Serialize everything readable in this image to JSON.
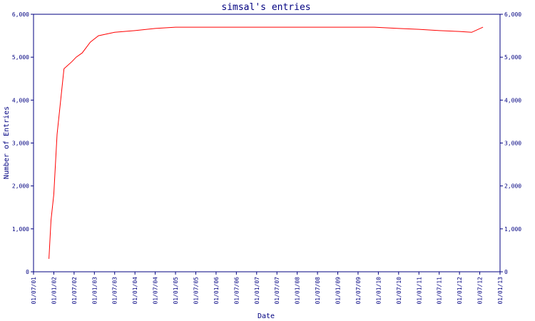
{
  "chart_data": {
    "type": "line",
    "title": "simsal's entries",
    "xlabel": "Date",
    "ylabel": "Number of Entries",
    "ylim": [
      0,
      6000
    ],
    "y_ticks": [
      0,
      1000,
      2000,
      3000,
      4000,
      5000,
      6000
    ],
    "y_tick_labels": [
      "0",
      "1,000",
      "2,000",
      "3,000",
      "4,000",
      "5,000",
      "6,000"
    ],
    "x_tick_labels": [
      "01/07/01",
      "01/01/02",
      "01/07/02",
      "01/01/03",
      "01/07/03",
      "01/01/04",
      "01/07/04",
      "01/01/05",
      "01/07/05",
      "01/01/06",
      "01/07/06",
      "01/01/07",
      "01/07/07",
      "01/01/08",
      "01/07/08",
      "01/01/09",
      "01/07/09",
      "01/01/10",
      "01/07/10",
      "01/01/11",
      "01/07/11",
      "01/01/12",
      "01/07/12",
      "01/01/13"
    ],
    "x_tick_values": [
      2001.5,
      2002.0,
      2002.5,
      2003.0,
      2003.5,
      2004.0,
      2004.5,
      2005.0,
      2005.5,
      2006.0,
      2006.5,
      2007.0,
      2007.5,
      2008.0,
      2008.5,
      2009.0,
      2009.5,
      2010.0,
      2010.5,
      2011.0,
      2011.5,
      2012.0,
      2012.5,
      2013.0
    ],
    "grid": false,
    "line_color": "#ff0000",
    "axis_color": "#000080",
    "series": [
      {
        "x": [
          2001.88,
          2001.93,
          2002.0,
          2002.08,
          2002.25,
          2002.45,
          2002.55,
          2002.7,
          2002.9,
          2003.1,
          2003.5,
          2004.0,
          2004.5,
          2005.0,
          2006.0,
          2007.0,
          2008.0,
          2009.0,
          2009.9,
          2010.5,
          2011.0,
          2011.5,
          2012.0,
          2012.3,
          2012.58
        ],
        "y": [
          300,
          1200,
          1800,
          3200,
          4730,
          4900,
          5000,
          5100,
          5350,
          5500,
          5580,
          5620,
          5670,
          5700,
          5700,
          5700,
          5700,
          5700,
          5700,
          5670,
          5650,
          5620,
          5600,
          5580,
          5700
        ]
      }
    ]
  }
}
